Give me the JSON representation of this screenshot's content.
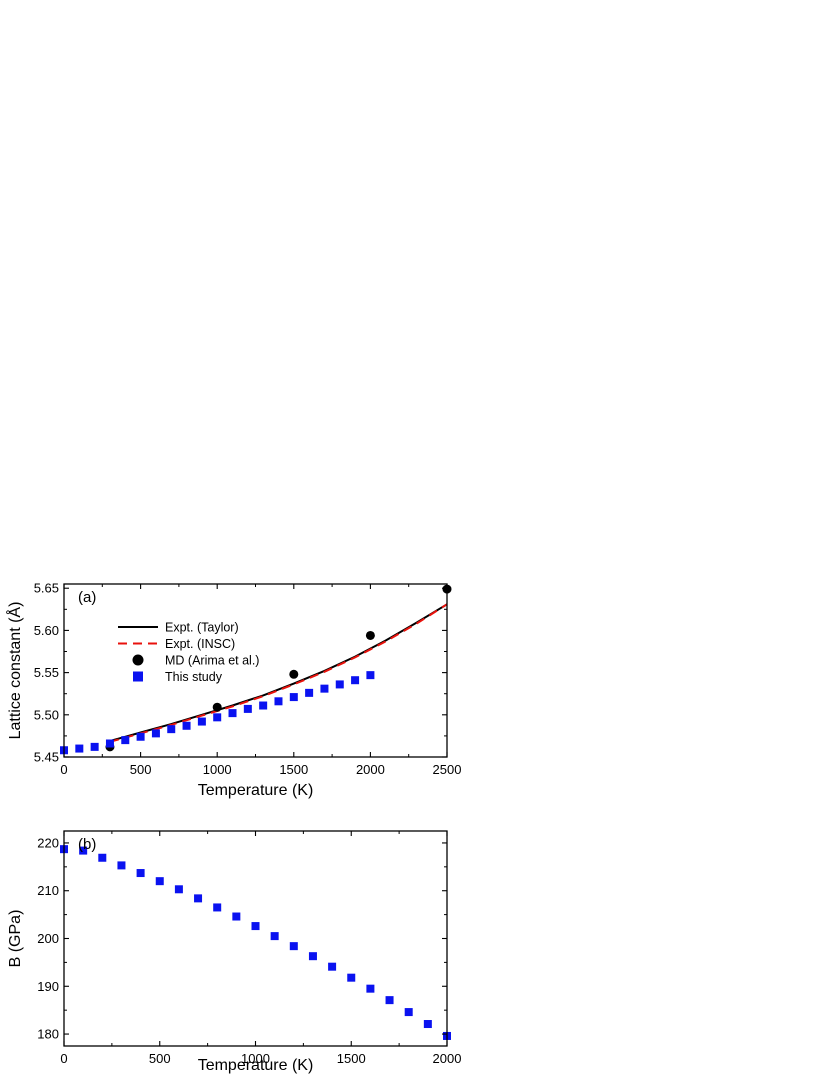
{
  "chart_data": [
    {
      "type": "line",
      "panel_label": "(a)",
      "xlabel": "Temperature (K)",
      "ylabel": "Lattice constant (Å)",
      "xlim": [
        0,
        2500
      ],
      "ylim": [
        5.45,
        5.655
      ],
      "xticks": [
        0,
        500,
        1000,
        1500,
        2000,
        2500
      ],
      "xtick_labels": [
        "0",
        "500",
        "1000",
        "1500",
        "2000",
        "2500"
      ],
      "yticks": [
        5.45,
        5.5,
        5.55,
        5.6,
        5.65
      ],
      "ytick_labels": [
        "5.45",
        "5.50",
        "5.55",
        "5.60",
        "5.65"
      ],
      "grid": false,
      "legend_position": "upper-left",
      "series": [
        {
          "name": "Expt. (Taylor)",
          "style": "line",
          "color": "#000000",
          "x": [
            300,
            500,
            700,
            900,
            1100,
            1300,
            1500,
            1700,
            1900,
            2100,
            2300,
            2500
          ],
          "y": [
            5.469,
            5.479,
            5.489,
            5.5,
            5.511,
            5.523,
            5.537,
            5.552,
            5.569,
            5.588,
            5.609,
            5.631
          ]
        },
        {
          "name": "Expt. (INSC)",
          "style": "dashed",
          "color": "#e8120c",
          "x": [
            300,
            500,
            700,
            900,
            1100,
            1300,
            1500,
            1700,
            1900,
            2100,
            2300,
            2500
          ],
          "y": [
            5.468,
            5.478,
            5.488,
            5.499,
            5.51,
            5.522,
            5.536,
            5.551,
            5.568,
            5.587,
            5.608,
            5.631
          ]
        },
        {
          "name": "MD (Arima et al.)",
          "style": "circle",
          "color": "#000000",
          "x": [
            300,
            1000,
            1500,
            2000,
            2500
          ],
          "y": [
            5.462,
            5.509,
            5.548,
            5.594,
            5.649
          ]
        },
        {
          "name": "This study",
          "style": "square",
          "color": "#0a12f0",
          "x": [
            0,
            100,
            200,
            300,
            400,
            500,
            600,
            700,
            800,
            900,
            1000,
            1100,
            1200,
            1300,
            1400,
            1500,
            1600,
            1700,
            1800,
            1900,
            2000
          ],
          "y": [
            5.458,
            5.46,
            5.462,
            5.466,
            5.47,
            5.474,
            5.478,
            5.483,
            5.487,
            5.492,
            5.497,
            5.502,
            5.507,
            5.511,
            5.516,
            5.521,
            5.526,
            5.531,
            5.536,
            5.541,
            5.547
          ]
        }
      ]
    },
    {
      "type": "scatter",
      "panel_label": "(b)",
      "xlabel": "Temperature (K)",
      "ylabel": "B (GPa)",
      "xlim": [
        0,
        2000
      ],
      "ylim": [
        177.5,
        222.5
      ],
      "xticks": [
        0,
        500,
        1000,
        1500,
        2000
      ],
      "xtick_labels": [
        "0",
        "500",
        "1000",
        "1500",
        "2000"
      ],
      "yticks": [
        180,
        190,
        200,
        210,
        220
      ],
      "ytick_labels": [
        "180",
        "190",
        "200",
        "210",
        "220"
      ],
      "grid": false,
      "series": [
        {
          "style": "square",
          "color": "#0a12f0",
          "x": [
            0,
            100,
            200,
            300,
            400,
            500,
            600,
            700,
            800,
            900,
            1000,
            1100,
            1200,
            1300,
            1400,
            1500,
            1600,
            1700,
            1800,
            1900,
            2000
          ],
          "y": [
            218.7,
            218.4,
            216.9,
            215.3,
            213.7,
            212.0,
            210.3,
            208.4,
            206.5,
            204.6,
            202.6,
            200.5,
            198.4,
            196.3,
            194.1,
            191.8,
            189.5,
            187.1,
            184.6,
            182.1,
            179.6
          ]
        }
      ]
    }
  ]
}
